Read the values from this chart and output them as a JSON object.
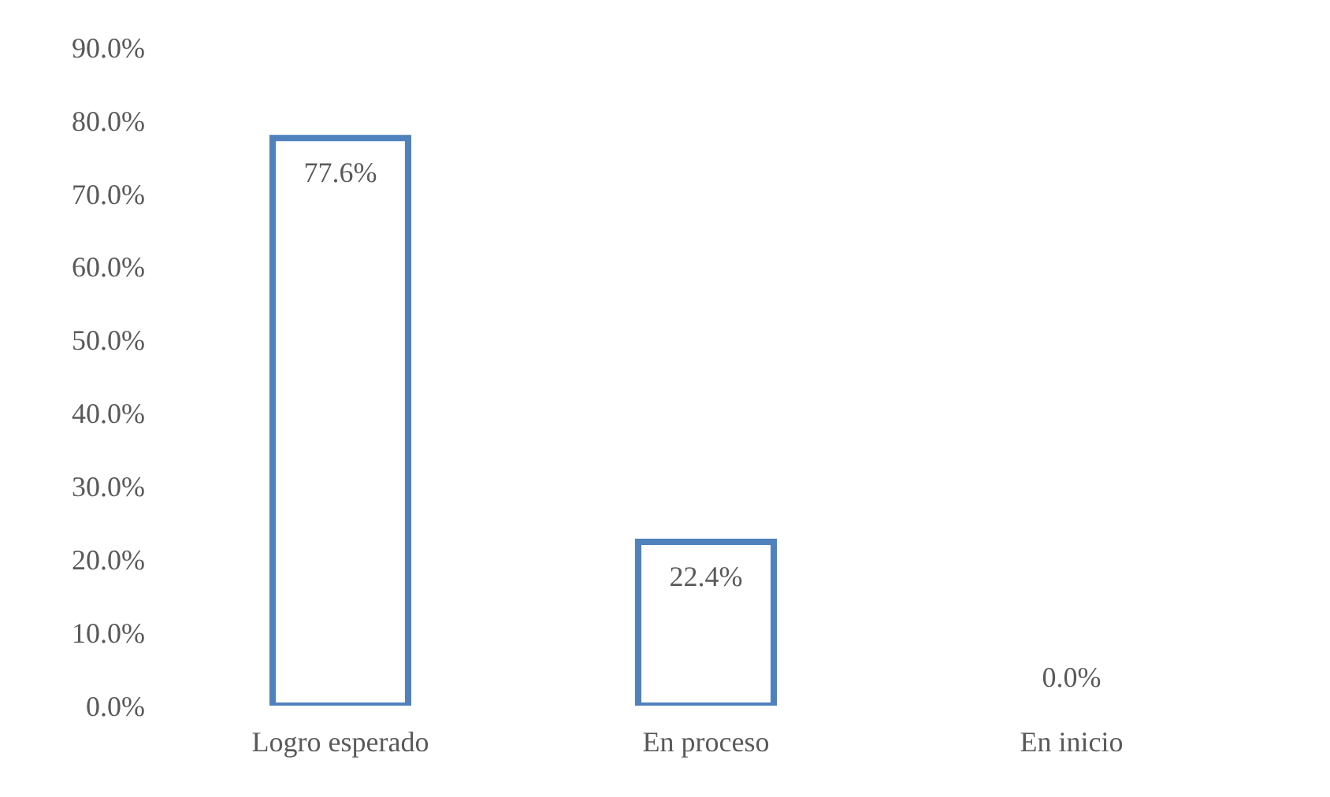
{
  "chart_data": {
    "type": "bar",
    "categories": [
      "Logro esperado",
      "En proceso",
      "En inicio"
    ],
    "values": [
      77.6,
      22.4,
      0
    ],
    "value_labels": [
      "77.6%",
      "22.4%",
      "0.0%"
    ],
    "color": "#4f81bd",
    "ylim": [
      0,
      90
    ],
    "yticks": [
      {
        "value": 0,
        "label": "0.0%"
      },
      {
        "value": 10,
        "label": "10.0%"
      },
      {
        "value": 20,
        "label": "20.0%"
      },
      {
        "value": 30,
        "label": "30.0%"
      },
      {
        "value": 40,
        "label": "40.0%"
      },
      {
        "value": 50,
        "label": "50.0%"
      },
      {
        "value": 60,
        "label": "60.0%"
      },
      {
        "value": 70,
        "label": "70.0%"
      },
      {
        "value": 80,
        "label": "80.0%"
      },
      {
        "value": 90,
        "label": "90.0%"
      }
    ],
    "grid": false,
    "legend": false
  }
}
